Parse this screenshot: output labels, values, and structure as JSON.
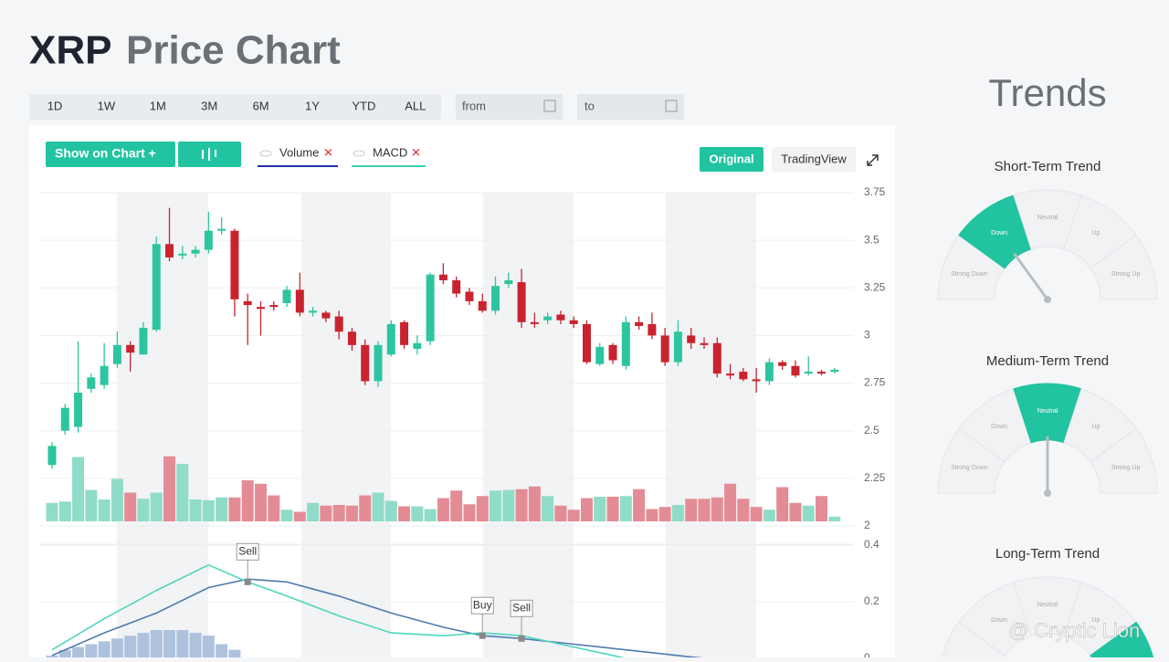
{
  "header": {
    "title_strong": "XRP",
    "title_rest": "Price Chart"
  },
  "ranges": [
    "1D",
    "1W",
    "1M",
    "3M",
    "6M",
    "1Y",
    "YTD",
    "ALL"
  ],
  "inputs": {
    "from": "from",
    "to": "to"
  },
  "toolbar": {
    "show_on_chart": "Show on Chart +",
    "indicators": [
      "Volume",
      "MACD"
    ],
    "modes": [
      "Original",
      "TradingView"
    ]
  },
  "chart_data": [
    {
      "type": "candlestick",
      "ylim": [
        2,
        3.75
      ],
      "yticks": [
        2,
        2.25,
        2.5,
        2.75,
        3,
        3.25,
        3.5,
        3.75
      ],
      "up_color": "#2dc59f",
      "down_color": "#c8242f",
      "grid": true,
      "open": [
        2.32,
        2.5,
        2.52,
        2.72,
        2.74,
        2.85,
        2.95,
        2.9,
        3.03,
        3.48,
        3.42,
        3.43,
        3.45,
        3.55,
        3.55,
        3.18,
        3.15,
        3.16,
        3.17,
        3.24,
        3.12,
        3.12,
        3.1,
        3.02,
        2.95,
        2.76,
        2.9,
        3.07,
        2.93,
        2.97,
        3.32,
        3.29,
        3.23,
        3.18,
        3.13,
        3.27,
        3.28,
        3.07,
        3.08,
        3.11,
        3.08,
        3.06,
        2.85,
        2.95,
        2.84,
        3.07,
        3.06,
        3.0,
        2.86,
        3.0,
        2.96,
        2.96,
        2.8,
        2.81,
        2.77,
        2.76,
        2.86,
        2.84,
        2.8,
        2.81,
        2.81
      ],
      "close": [
        2.42,
        2.62,
        2.7,
        2.78,
        2.84,
        2.95,
        2.91,
        3.04,
        3.48,
        3.41,
        3.43,
        3.45,
        3.55,
        3.56,
        3.19,
        3.16,
        3.14,
        3.15,
        3.24,
        3.12,
        3.13,
        3.09,
        3.02,
        2.95,
        2.76,
        2.95,
        3.06,
        2.95,
        2.96,
        3.32,
        3.29,
        3.22,
        3.18,
        3.13,
        3.26,
        3.29,
        3.07,
        3.06,
        3.1,
        3.08,
        3.06,
        2.86,
        2.94,
        2.87,
        3.07,
        3.05,
        3.0,
        2.86,
        3.02,
        2.96,
        2.95,
        2.8,
        2.79,
        2.77,
        2.76,
        2.86,
        2.84,
        2.79,
        2.81,
        2.8,
        2.82
      ],
      "high": [
        2.44,
        2.64,
        2.97,
        2.8,
        2.96,
        3.02,
        2.97,
        3.07,
        3.52,
        3.67,
        3.47,
        3.47,
        3.65,
        3.62,
        3.56,
        3.22,
        3.18,
        3.18,
        3.26,
        3.33,
        3.15,
        3.13,
        3.13,
        3.04,
        2.98,
        2.97,
        3.08,
        3.08,
        3.0,
        3.33,
        3.38,
        3.31,
        3.25,
        3.22,
        3.31,
        3.33,
        3.35,
        3.12,
        3.12,
        3.13,
        3.1,
        3.08,
        2.96,
        2.96,
        3.1,
        3.1,
        3.12,
        3.04,
        3.08,
        3.04,
        2.99,
        2.99,
        2.85,
        2.83,
        2.83,
        2.88,
        2.87,
        2.87,
        2.89,
        2.82,
        2.83
      ],
      "low": [
        2.3,
        2.48,
        2.49,
        2.7,
        2.72,
        2.83,
        2.81,
        2.9,
        3.02,
        3.39,
        3.4,
        3.41,
        3.43,
        3.53,
        3.1,
        2.95,
        3.0,
        3.13,
        3.15,
        3.1,
        3.1,
        3.07,
        2.98,
        2.92,
        2.74,
        2.73,
        2.89,
        2.93,
        2.9,
        2.95,
        3.27,
        3.2,
        3.16,
        3.12,
        3.11,
        3.25,
        3.04,
        3.04,
        3.06,
        3.06,
        3.04,
        2.85,
        2.84,
        2.85,
        2.82,
        3.03,
        2.98,
        2.84,
        2.84,
        2.93,
        2.93,
        2.78,
        2.77,
        2.76,
        2.7,
        2.74,
        2.82,
        2.78,
        2.79,
        2.79,
        2.8
      ],
      "volume": [
        27,
        29,
        94,
        46,
        32,
        62,
        42,
        33,
        42,
        95,
        84,
        32,
        31,
        35,
        35,
        60,
        55,
        38,
        17,
        14,
        27,
        23,
        24,
        23,
        38,
        42,
        30,
        22,
        22,
        18,
        34,
        45,
        25,
        37,
        45,
        46,
        47,
        51,
        37,
        23,
        17,
        34,
        36,
        36,
        37,
        47,
        18,
        21,
        24,
        33,
        33,
        35,
        55,
        33,
        21,
        17,
        50,
        27,
        23,
        37,
        7
      ]
    },
    {
      "type": "line",
      "ylim": [
        0,
        0.4
      ],
      "yticks": [
        0,
        0.2,
        0.4
      ],
      "grid": true,
      "x": [
        0,
        4,
        8,
        12,
        15,
        18,
        22,
        26,
        30,
        33,
        36,
        40,
        44,
        48,
        52
      ],
      "series": [
        {
          "color": "#4f7bb0",
          "values": [
            0.01,
            0.09,
            0.16,
            0.25,
            0.28,
            0.27,
            0.22,
            0.16,
            0.11,
            0.08,
            0.07,
            0.05,
            0.03,
            0.01,
            -0.01
          ]
        },
        {
          "color": "#4fd6bb",
          "values": [
            0.03,
            0.14,
            0.24,
            0.33,
            0.27,
            0.22,
            0.15,
            0.09,
            0.08,
            0.09,
            0.08,
            0.04,
            0.0,
            -0.02,
            -0.03
          ]
        }
      ],
      "histogram": {
        "color": "#aec2de",
        "values": [
          0.01,
          0.03,
          0.04,
          0.05,
          0.06,
          0.07,
          0.08,
          0.09,
          0.1,
          0.1,
          0.1,
          0.09,
          0.08,
          0.05,
          0.03
        ]
      },
      "signals": [
        {
          "x": 15,
          "value": 0.27,
          "label": "Sell"
        },
        {
          "x": 33,
          "value": 0.08,
          "label": "Buy"
        },
        {
          "x": 36,
          "value": 0.07,
          "label": "Sell"
        }
      ]
    }
  ],
  "trends": {
    "title": "Trends",
    "labels": [
      "Strong Down",
      "Down",
      "Neutral",
      "Up",
      "Strong Up"
    ],
    "gauges": [
      {
        "title": "Short-Term Trend",
        "active": 1
      },
      {
        "title": "Medium-Term Trend",
        "active": 2
      },
      {
        "title": "Long-Term Trend",
        "active": 4
      }
    ]
  },
  "watermark": "@ Cryptic Lion"
}
